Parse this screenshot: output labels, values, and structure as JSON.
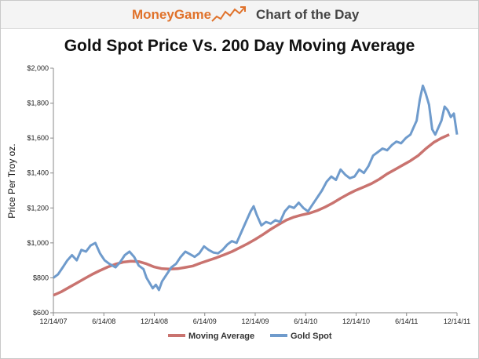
{
  "header": {
    "brand": "MoneyGame",
    "tagline": "Chart of the Day",
    "logo_icon": "trend-line-icon"
  },
  "colors": {
    "brand": "#e0722b",
    "moving_average": "#c9736f",
    "gold_spot": "#6f9bcc"
  },
  "chart_data": {
    "type": "line",
    "title": "Gold Spot Price Vs. 200 Day Moving Average",
    "xlabel": "",
    "ylabel": "Price Per Troy oz.",
    "ylim": [
      600,
      2000
    ],
    "yticks": [
      "$600",
      "$800",
      "$1,000",
      "$1,200",
      "$1,400",
      "$1,600",
      "$1,800",
      "$2,000"
    ],
    "yticks_values": [
      600,
      800,
      1000,
      1200,
      1400,
      1600,
      1800,
      2000
    ],
    "xticks": [
      "12/14/07",
      "6/14/08",
      "12/14/08",
      "6/14/09",
      "12/14/09",
      "6/14/10",
      "12/14/10",
      "6/14/11",
      "12/14/11"
    ],
    "grid": false,
    "legend": "bottom",
    "series": [
      {
        "name": "Moving Average",
        "color": "#c9736f",
        "points": [
          [
            0,
            700
          ],
          [
            0.5,
            720
          ],
          [
            1,
            745
          ],
          [
            1.5,
            770
          ],
          [
            2,
            795
          ],
          [
            2.5,
            820
          ],
          [
            3,
            842
          ],
          [
            3.5,
            862
          ],
          [
            4,
            878
          ],
          [
            4.5,
            890
          ],
          [
            5,
            895
          ],
          [
            5.5,
            893
          ],
          [
            6,
            880
          ],
          [
            6.5,
            862
          ],
          [
            7,
            852
          ],
          [
            7.5,
            850
          ],
          [
            8,
            852
          ],
          [
            8.5,
            860
          ],
          [
            9,
            868
          ],
          [
            9.5,
            885
          ],
          [
            10,
            900
          ],
          [
            10.5,
            915
          ],
          [
            11,
            932
          ],
          [
            11.5,
            950
          ],
          [
            12,
            972
          ],
          [
            12.5,
            995
          ],
          [
            13,
            1020
          ],
          [
            13.5,
            1048
          ],
          [
            14,
            1078
          ],
          [
            14.5,
            1105
          ],
          [
            15,
            1130
          ],
          [
            15.5,
            1148
          ],
          [
            16,
            1160
          ],
          [
            16.5,
            1170
          ],
          [
            17,
            1185
          ],
          [
            17.5,
            1205
          ],
          [
            18,
            1228
          ],
          [
            18.5,
            1255
          ],
          [
            19,
            1280
          ],
          [
            19.5,
            1302
          ],
          [
            20,
            1320
          ],
          [
            20.5,
            1340
          ],
          [
            21,
            1365
          ],
          [
            21.5,
            1395
          ],
          [
            22,
            1420
          ],
          [
            22.5,
            1445
          ],
          [
            23,
            1470
          ],
          [
            23.5,
            1500
          ],
          [
            24,
            1540
          ],
          [
            24.5,
            1575
          ],
          [
            25,
            1600
          ],
          [
            25.5,
            1620
          ]
        ]
      },
      {
        "name": "Gold Spot",
        "color": "#6f9bcc",
        "points": [
          [
            0,
            800
          ],
          [
            0.3,
            820
          ],
          [
            0.6,
            860
          ],
          [
            0.9,
            900
          ],
          [
            1.2,
            930
          ],
          [
            1.5,
            900
          ],
          [
            1.8,
            960
          ],
          [
            2.1,
            950
          ],
          [
            2.4,
            985
          ],
          [
            2.7,
            1000
          ],
          [
            3.0,
            940
          ],
          [
            3.3,
            900
          ],
          [
            3.6,
            880
          ],
          [
            4,
            860
          ],
          [
            4.3,
            890
          ],
          [
            4.6,
            930
          ],
          [
            4.9,
            950
          ],
          [
            5.2,
            920
          ],
          [
            5.5,
            870
          ],
          [
            5.8,
            850
          ],
          [
            6.0,
            800
          ],
          [
            6.2,
            770
          ],
          [
            6.4,
            740
          ],
          [
            6.6,
            760
          ],
          [
            6.8,
            730
          ],
          [
            7.0,
            780
          ],
          [
            7.3,
            820
          ],
          [
            7.6,
            860
          ],
          [
            7.9,
            880
          ],
          [
            8.2,
            920
          ],
          [
            8.5,
            950
          ],
          [
            8.8,
            935
          ],
          [
            9.1,
            920
          ],
          [
            9.4,
            940
          ],
          [
            9.7,
            980
          ],
          [
            10,
            960
          ],
          [
            10.3,
            945
          ],
          [
            10.6,
            940
          ],
          [
            10.9,
            960
          ],
          [
            11.2,
            990
          ],
          [
            11.5,
            1010
          ],
          [
            11.8,
            1000
          ],
          [
            12.1,
            1060
          ],
          [
            12.4,
            1120
          ],
          [
            12.7,
            1180
          ],
          [
            12.9,
            1210
          ],
          [
            13.1,
            1160
          ],
          [
            13.4,
            1100
          ],
          [
            13.7,
            1120
          ],
          [
            14.0,
            1110
          ],
          [
            14.3,
            1130
          ],
          [
            14.6,
            1120
          ],
          [
            14.9,
            1180
          ],
          [
            15.2,
            1210
          ],
          [
            15.5,
            1200
          ],
          [
            15.8,
            1230
          ],
          [
            16.1,
            1200
          ],
          [
            16.4,
            1180
          ],
          [
            16.7,
            1220
          ],
          [
            17.0,
            1260
          ],
          [
            17.3,
            1300
          ],
          [
            17.6,
            1350
          ],
          [
            17.9,
            1380
          ],
          [
            18.2,
            1360
          ],
          [
            18.5,
            1420
          ],
          [
            18.8,
            1390
          ],
          [
            19.1,
            1370
          ],
          [
            19.4,
            1380
          ],
          [
            19.7,
            1420
          ],
          [
            20.0,
            1400
          ],
          [
            20.3,
            1440
          ],
          [
            20.6,
            1500
          ],
          [
            20.9,
            1520
          ],
          [
            21.2,
            1540
          ],
          [
            21.5,
            1530
          ],
          [
            21.8,
            1560
          ],
          [
            22.1,
            1580
          ],
          [
            22.4,
            1570
          ],
          [
            22.7,
            1600
          ],
          [
            23.0,
            1620
          ],
          [
            23.2,
            1660
          ],
          [
            23.4,
            1700
          ],
          [
            23.6,
            1820
          ],
          [
            23.8,
            1900
          ],
          [
            24.0,
            1850
          ],
          [
            24.2,
            1790
          ],
          [
            24.4,
            1650
          ],
          [
            24.6,
            1620
          ],
          [
            24.8,
            1660
          ],
          [
            25.0,
            1700
          ],
          [
            25.2,
            1780
          ],
          [
            25.4,
            1760
          ],
          [
            25.6,
            1720
          ],
          [
            25.8,
            1740
          ],
          [
            26.0,
            1620
          ]
        ]
      }
    ]
  }
}
